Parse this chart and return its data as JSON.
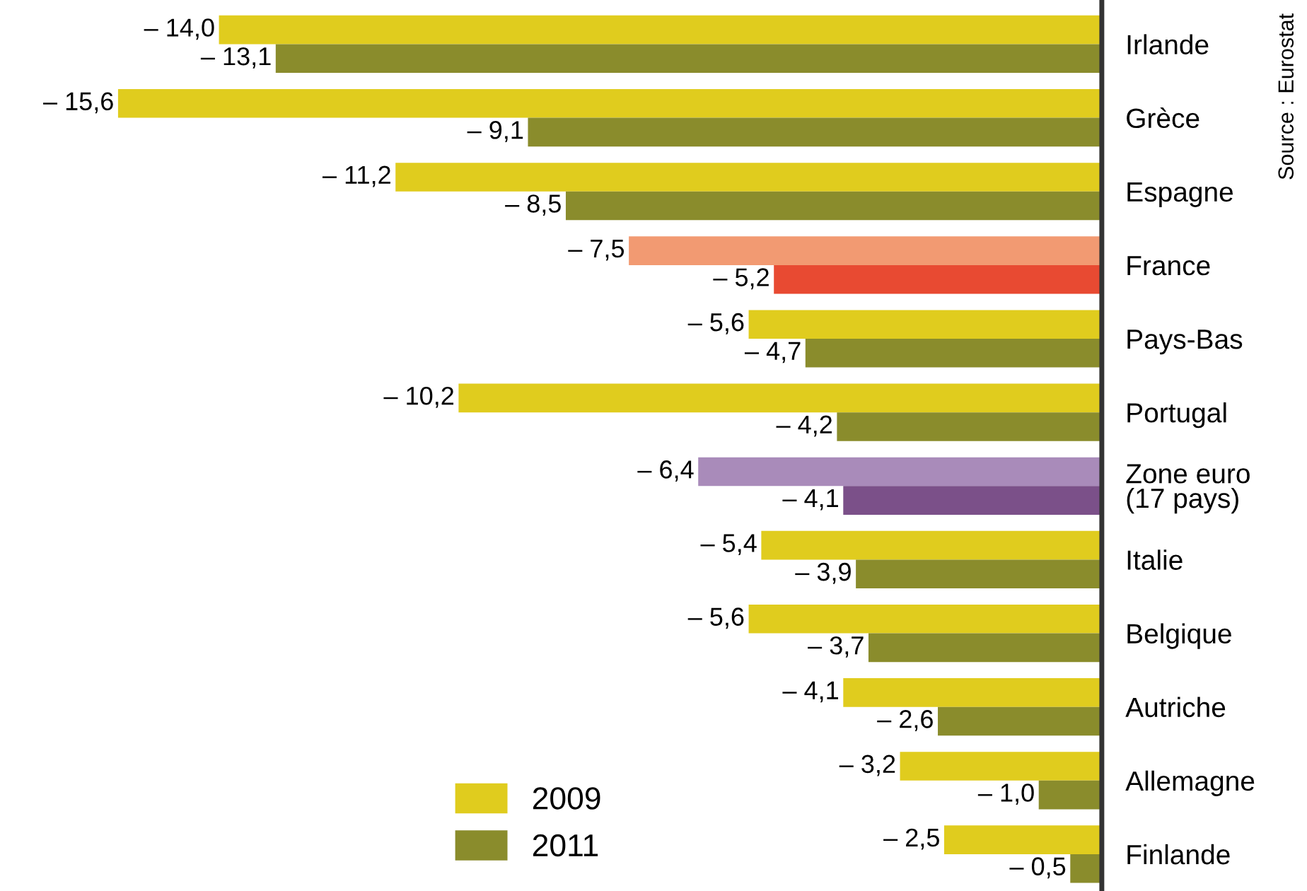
{
  "chart_data": {
    "type": "bar",
    "orientation": "horizontal",
    "categories": [
      "Irlande",
      "Grèce",
      "Espagne",
      "France",
      "Pays-Bas",
      "Portugal",
      "Zone euro\n(17 pays)",
      "Italie",
      "Belgique",
      "Autriche",
      "Allemagne",
      "Finlande"
    ],
    "series": [
      {
        "name": "2009",
        "color": "#e0cc1e",
        "colors": [
          "#e0cc1e",
          "#e0cc1e",
          "#e0cc1e",
          "#f29a72",
          "#e0cc1e",
          "#e0cc1e",
          "#a98bba",
          "#e0cc1e",
          "#e0cc1e",
          "#e0cc1e",
          "#e0cc1e",
          "#e0cc1e"
        ],
        "values": [
          -14.0,
          -15.6,
          -11.2,
          -7.5,
          -5.6,
          -10.2,
          -6.4,
          -5.4,
          -5.6,
          -4.1,
          -3.2,
          -2.5
        ],
        "value_labels": [
          "– 14,0",
          "– 15,6",
          "– 11,2",
          "– 7,5",
          "– 5,6",
          "– 10,2",
          "– 6,4",
          "– 5,4",
          "– 5,6",
          "– 4,1",
          "– 3,2",
          "– 2,5"
        ]
      },
      {
        "name": "2011",
        "color": "#8a8c2c",
        "colors": [
          "#8a8c2c",
          "#8a8c2c",
          "#8a8c2c",
          "#e84a32",
          "#8a8c2c",
          "#8a8c2c",
          "#7b5089",
          "#8a8c2c",
          "#8a8c2c",
          "#8a8c2c",
          "#8a8c2c",
          "#8a8c2c"
        ],
        "values": [
          -13.1,
          -9.1,
          -8.5,
          -5.2,
          -4.7,
          -4.2,
          -4.1,
          -3.9,
          -3.7,
          -2.6,
          -1.0,
          -0.5
        ],
        "value_labels": [
          "– 13,1",
          "– 9,1",
          "– 8,5",
          "– 5,2",
          "– 4,7",
          "– 4,2",
          "– 4,1",
          "– 3,9",
          "– 3,7",
          "– 2,6",
          "– 1,0",
          "– 0,5"
        ]
      }
    ],
    "legend": "bottom",
    "grid": false,
    "annotations": [
      "Source : Eurostat"
    ]
  }
}
